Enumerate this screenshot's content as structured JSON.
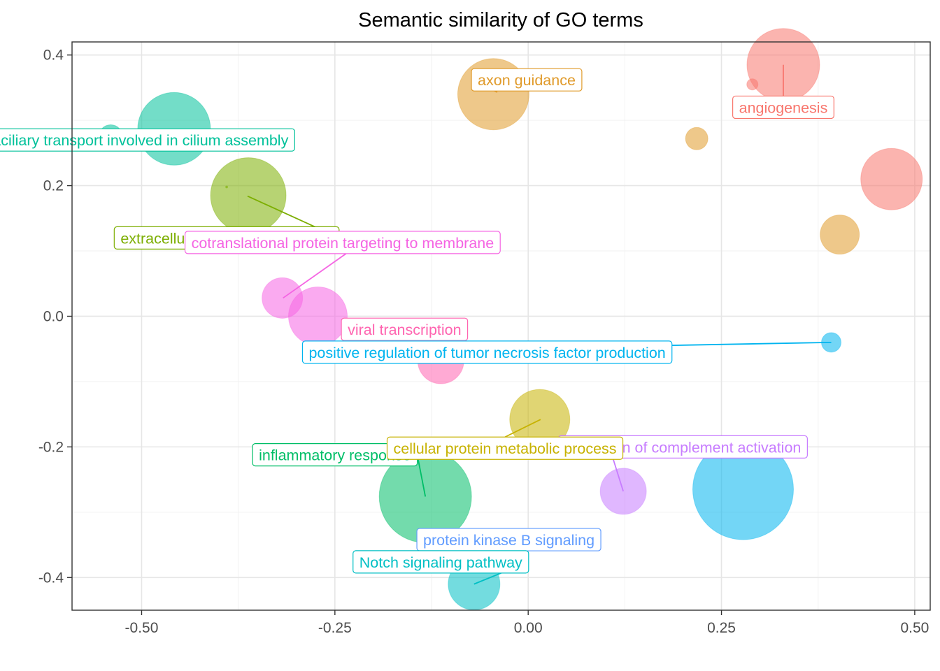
{
  "chart_data": {
    "type": "scatter",
    "title": "Semantic similarity of GO terms",
    "xlabel": "",
    "ylabel": "",
    "xlim": [
      -0.59,
      0.52
    ],
    "ylim": [
      -0.45,
      0.42
    ],
    "xticks": [
      -0.5,
      -0.25,
      0.0,
      0.25,
      0.5
    ],
    "xtick_labels": [
      "-0.50",
      "-0.25",
      "0.00",
      "0.25",
      "0.50"
    ],
    "yticks": [
      -0.4,
      -0.2,
      0.0,
      0.2,
      0.4
    ],
    "ytick_labels": [
      "-0.4",
      "-0.2",
      "0.0",
      "0.2",
      "0.4"
    ],
    "grid": true,
    "legend": "none",
    "points": [
      {
        "x": 0.33,
        "y": 0.385,
        "size": 52,
        "color": "#F8766D"
      },
      {
        "x": 0.29,
        "y": 0.355,
        "size": 8,
        "color": "#F8766D"
      },
      {
        "x": 0.47,
        "y": 0.21,
        "size": 44,
        "color": "#F8766D"
      },
      {
        "x": -0.045,
        "y": 0.34,
        "size": 51,
        "color": "#E09A2A"
      },
      {
        "x": 0.218,
        "y": 0.272,
        "size": 16,
        "color": "#E09A2A"
      },
      {
        "x": 0.403,
        "y": 0.125,
        "size": 28,
        "color": "#E09A2A"
      },
      {
        "x": -0.458,
        "y": 0.287,
        "size": 52,
        "color": "#00C19A"
      },
      {
        "x": -0.54,
        "y": 0.275,
        "size": 17,
        "color": "#00C19A"
      },
      {
        "x": -0.362,
        "y": 0.185,
        "size": 54,
        "color": "#7CAE00"
      },
      {
        "x": -0.39,
        "y": 0.198,
        "size": 1.5,
        "color": "#7CAE00"
      },
      {
        "x": -0.318,
        "y": 0.028,
        "size": 29,
        "color": "#F564E3"
      },
      {
        "x": -0.272,
        "y": 0.0,
        "size": 42,
        "color": "#F564E3"
      },
      {
        "x": -0.113,
        "y": -0.068,
        "size": 33,
        "color": "#FF64B0"
      },
      {
        "x": 0.392,
        "y": -0.04,
        "size": 14,
        "color": "#00B4EF"
      },
      {
        "x": 0.278,
        "y": -0.265,
        "size": 72,
        "color": "#00B4EF"
      },
      {
        "x": 0.015,
        "y": -0.158,
        "size": 43,
        "color": "#C7B200"
      },
      {
        "x": 0.123,
        "y": -0.268,
        "size": 33,
        "color": "#C77CFF"
      },
      {
        "x": -0.133,
        "y": -0.276,
        "size": 66,
        "color": "#00BE67"
      },
      {
        "x": -0.078,
        "y": -0.366,
        "size": 24,
        "color": "#00BFC4"
      },
      {
        "x": -0.07,
        "y": -0.41,
        "size": 37,
        "color": "#00BFC4"
      },
      {
        "x": -0.06,
        "y": -0.355,
        "size": 13,
        "color": "#619CFF"
      }
    ],
    "labels": [
      {
        "text": "angiogenesis",
        "color": "#F8766D",
        "px": 0.33,
        "py": 0.385,
        "lx": 0.33,
        "ly": 0.32,
        "side": "top"
      },
      {
        "text": "axon guidance",
        "color": "#E09A2A",
        "px": -0.04,
        "py": 0.343,
        "lx": -0.002,
        "ly": 0.362,
        "side": "left"
      },
      {
        "text": "intraciliary transport involved in cilium assembly",
        "color": "#00C19A",
        "px": -0.54,
        "py": 0.275,
        "lx": -0.515,
        "ly": 0.27,
        "side": "left"
      },
      {
        "text": "extracellular matrix organization",
        "color": "#7CAE00",
        "px": -0.363,
        "py": 0.184,
        "lx": -0.39,
        "ly": 0.12,
        "side": "right"
      },
      {
        "text": "cotranslational protein targeting to membrane",
        "color": "#F564E3",
        "px": -0.317,
        "py": 0.028,
        "lx": -0.24,
        "ly": 0.113,
        "side": "bottom"
      },
      {
        "text": "viral transcription",
        "color": "#FF64B0",
        "px": -0.113,
        "py": -0.068,
        "lx": -0.16,
        "ly": -0.02,
        "side": "bottom"
      },
      {
        "text": "positive regulation of tumor necrosis factor production",
        "color": "#00B4EF",
        "px": 0.392,
        "py": -0.04,
        "lx": -0.053,
        "ly": -0.055,
        "side": "left"
      },
      {
        "text": "regulation of complement activation",
        "color": "#C77CFF",
        "px": 0.123,
        "py": -0.268,
        "lx": 0.2,
        "ly": -0.2,
        "side": "bottom"
      },
      {
        "text": "inflammatory response",
        "color": "#00BE67",
        "px": -0.133,
        "py": -0.276,
        "lx": -0.25,
        "ly": -0.212,
        "side": "right"
      },
      {
        "text": "cellular protein metabolic process",
        "color": "#C7B200",
        "px": 0.016,
        "py": -0.158,
        "lx": -0.03,
        "ly": -0.202,
        "side": "top"
      },
      {
        "text": "protein kinase B signaling",
        "color": "#619CFF",
        "px": -0.06,
        "py": -0.355,
        "lx": -0.025,
        "ly": -0.342,
        "side": "left"
      },
      {
        "text": "Notch signaling pathway",
        "color": "#00BFC4",
        "px": -0.07,
        "py": -0.41,
        "lx": -0.113,
        "ly": -0.376,
        "side": "right"
      }
    ]
  }
}
